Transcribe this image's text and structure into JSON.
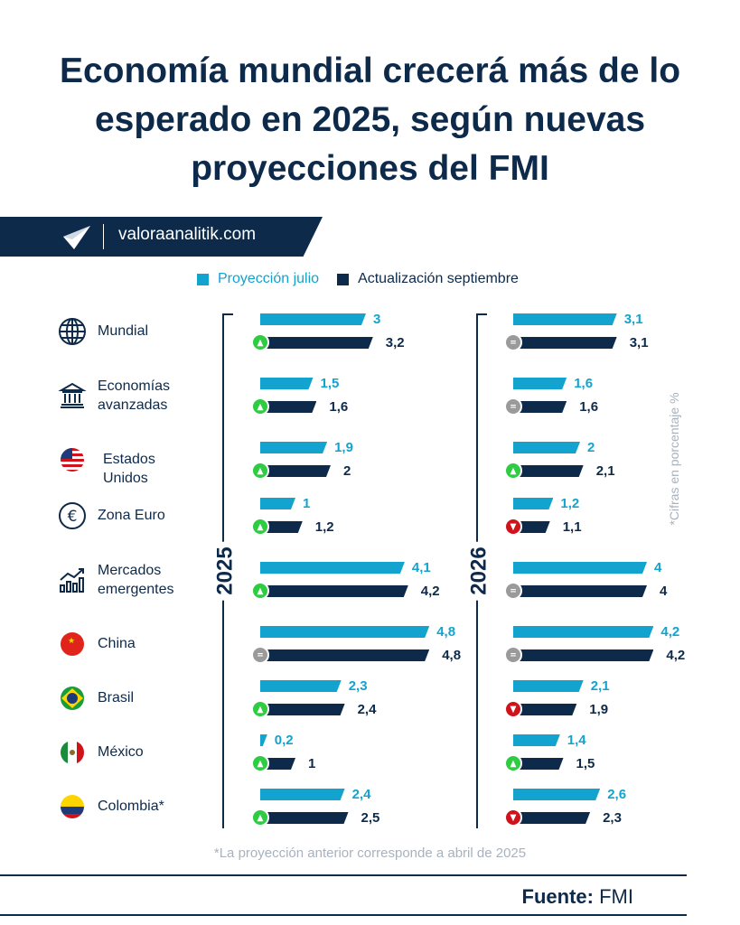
{
  "title": "Economía mundial crecerá más de lo esperado en 2025, según nuevas proyecciones del FMI",
  "brand": {
    "url": "valoraanalitik.com",
    "logo_icon": "paper-plane-logo-icon"
  },
  "colors": {
    "julio": "#12a3cf",
    "septiembre": "#0d2a4a",
    "up": "#2ecc40",
    "equal": "#9a9a9a",
    "down": "#d0121b"
  },
  "chart_data": {
    "type": "bar",
    "orientation": "horizontal",
    "legend": {
      "placement": "top",
      "items": [
        "Proyección julio",
        "Actualización septiembre"
      ]
    },
    "panels": [
      "2025",
      "2026"
    ],
    "unit_note": "*Cifras en porcentaje %",
    "rows": [
      {
        "label": "Mundial",
        "icon": "globe-icon",
        "y2025": {
          "julio": 3,
          "sept": 3.2,
          "julio_label": "3",
          "sept_label": "3,2",
          "trend": "up"
        },
        "y2026": {
          "julio": 3.1,
          "sept": 3.1,
          "julio_label": "3,1",
          "sept_label": "3,1",
          "trend": "equal"
        }
      },
      {
        "label": "Economías avanzadas",
        "icon": "bank-icon",
        "y2025": {
          "julio": 1.5,
          "sept": 1.6,
          "julio_label": "1,5",
          "sept_label": "1,6",
          "trend": "up"
        },
        "y2026": {
          "julio": 1.6,
          "sept": 1.6,
          "julio_label": "1,6",
          "sept_label": "1,6",
          "trend": "equal"
        }
      },
      {
        "label": "Estados Unidos",
        "icon": "us-flag-icon",
        "y2025": {
          "julio": 1.9,
          "sept": 2,
          "julio_label": "1,9",
          "sept_label": "2",
          "trend": "up"
        },
        "y2026": {
          "julio": 2,
          "sept": 2.1,
          "julio_label": "2",
          "sept_label": "2,1",
          "trend": "up"
        }
      },
      {
        "label": "Zona Euro",
        "icon": "euro-icon",
        "y2025": {
          "julio": 1,
          "sept": 1.2,
          "julio_label": "1",
          "sept_label": "1,2",
          "trend": "up"
        },
        "y2026": {
          "julio": 1.2,
          "sept": 1.1,
          "julio_label": "1,2",
          "sept_label": "1,1",
          "trend": "down"
        }
      },
      {
        "label": "Mercados emergentes",
        "icon": "growth-chart-icon",
        "y2025": {
          "julio": 4.1,
          "sept": 4.2,
          "julio_label": "4,1",
          "sept_label": "4,2",
          "trend": "up"
        },
        "y2026": {
          "julio": 4,
          "sept": 4,
          "julio_label": "4",
          "sept_label": "4",
          "trend": "equal"
        }
      },
      {
        "label": "China",
        "icon": "china-flag-icon",
        "y2025": {
          "julio": 4.8,
          "sept": 4.8,
          "julio_label": "4,8",
          "sept_label": "4,8",
          "trend": "equal"
        },
        "y2026": {
          "julio": 4.2,
          "sept": 4.2,
          "julio_label": "4,2",
          "sept_label": "4,2",
          "trend": "equal"
        }
      },
      {
        "label": "Brasil",
        "icon": "brazil-flag-icon",
        "y2025": {
          "julio": 2.3,
          "sept": 2.4,
          "julio_label": "2,3",
          "sept_label": "2,4",
          "trend": "up"
        },
        "y2026": {
          "julio": 2.1,
          "sept": 1.9,
          "julio_label": "2,1",
          "sept_label": "1,9",
          "trend": "down"
        }
      },
      {
        "label": "México",
        "icon": "mexico-flag-icon",
        "y2025": {
          "julio": 0.2,
          "sept": 1,
          "julio_label": "0,2",
          "sept_label": "1",
          "trend": "up"
        },
        "y2026": {
          "julio": 1.4,
          "sept": 1.5,
          "julio_label": "1,4",
          "sept_label": "1,5",
          "trend": "up"
        }
      },
      {
        "label": "Colombia*",
        "icon": "colombia-flag-icon",
        "y2025": {
          "julio": 2.4,
          "sept": 2.5,
          "julio_label": "2,4",
          "sept_label": "2,5",
          "trend": "up"
        },
        "y2026": {
          "julio": 2.6,
          "sept": 2.3,
          "julio_label": "2,6",
          "sept_label": "2,3",
          "trend": "down"
        }
      }
    ]
  },
  "footnote": "*La proyección anterior corresponde a abril de 2025",
  "source": {
    "label": "Fuente:",
    "value": "FMI"
  }
}
